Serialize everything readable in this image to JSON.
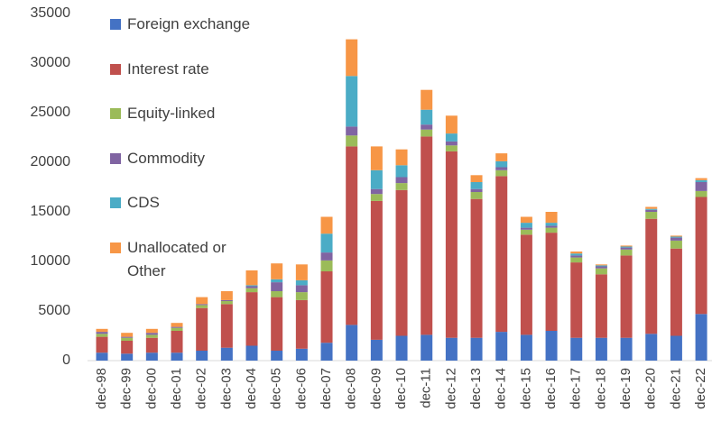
{
  "chart_data": {
    "type": "stacked-bar",
    "categories": [
      "dec-98",
      "dec-99",
      "dec-00",
      "dec-01",
      "dec-02",
      "dec-03",
      "dec-04",
      "dec-05",
      "dec-06",
      "dec-07",
      "dec-08",
      "dec-09",
      "dec-10",
      "dec-11",
      "dec-12",
      "dec-13",
      "dec-14",
      "dec-15",
      "dec-16",
      "dec-17",
      "dec-18",
      "dec-19",
      "dec-20",
      "dec-21",
      "dec-22"
    ],
    "series": [
      {
        "name": "Foreign exchange",
        "color": "#4472c4",
        "values": [
          800,
          700,
          800,
          800,
          1000,
          1300,
          1500,
          1000,
          1200,
          1800,
          3600,
          2100,
          2500,
          2600,
          2300,
          2300,
          2900,
          2600,
          3000,
          2300,
          2300,
          2300,
          2700,
          2500,
          4700
        ]
      },
      {
        "name": "Interest rate",
        "color": "#c0504d",
        "values": [
          1600,
          1300,
          1500,
          2200,
          4300,
          4400,
          5400,
          5400,
          4900,
          7200,
          18000,
          14000,
          14700,
          20000,
          18800,
          14000,
          15700,
          10100,
          9900,
          7600,
          6400,
          8300,
          11600,
          8800,
          11800
        ]
      },
      {
        "name": "Equity-linked",
        "color": "#9bbb59",
        "values": [
          300,
          300,
          300,
          300,
          300,
          300,
          400,
          600,
          800,
          1100,
          1100,
          700,
          700,
          700,
          600,
          700,
          600,
          500,
          500,
          500,
          600,
          600,
          700,
          800,
          600
        ]
      },
      {
        "name": "Commodity",
        "color": "#8064a2",
        "values": [
          200,
          100,
          200,
          100,
          100,
          100,
          200,
          900,
          700,
          800,
          900,
          500,
          600,
          500,
          400,
          300,
          300,
          200,
          200,
          200,
          200,
          200,
          200,
          300,
          900
        ]
      },
      {
        "name": "CDS",
        "color": "#4bacc6",
        "values": [
          0,
          0,
          0,
          0,
          0,
          0,
          100,
          300,
          500,
          1900,
          5100,
          1900,
          1200,
          1500,
          800,
          700,
          600,
          500,
          300,
          200,
          100,
          100,
          100,
          100,
          200
        ]
      },
      {
        "name": "Unallocated or Other",
        "color": "#f79646",
        "values": [
          300,
          400,
          400,
          400,
          700,
          900,
          1500,
          1600,
          1600,
          1700,
          3700,
          2400,
          1600,
          2000,
          1800,
          700,
          800,
          600,
          1100,
          200,
          100,
          100,
          200,
          100,
          200
        ]
      }
    ],
    "ylim": [
      0,
      35000
    ],
    "yticks": [
      0,
      5000,
      10000,
      15000,
      20000,
      25000,
      30000,
      35000
    ],
    "grid": false
  }
}
